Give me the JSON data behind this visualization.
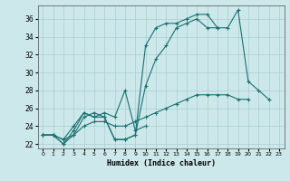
{
  "xlabel": "Humidex (Indice chaleur)",
  "xlim": [
    -0.5,
    23.5
  ],
  "ylim": [
    21.5,
    37.5
  ],
  "yticks": [
    22,
    24,
    26,
    28,
    30,
    32,
    34,
    36
  ],
  "xticks": [
    0,
    1,
    2,
    3,
    4,
    5,
    6,
    7,
    8,
    9,
    10,
    11,
    12,
    13,
    14,
    15,
    16,
    17,
    18,
    19,
    20,
    21,
    22,
    23
  ],
  "bg_color": "#cce8ea",
  "grid_color": "#aacfd4",
  "line_color": "#1a7070",
  "line1": [
    23.0,
    23.0,
    22.0,
    23.0,
    25.0,
    25.5,
    25.0,
    22.5,
    22.5,
    23.0,
    33.0,
    35.0,
    35.5,
    35.5,
    36.0,
    36.5,
    36.5,
    35.0,
    35.0,
    37.0,
    29.0,
    28.0,
    27.0,
    null
  ],
  "line2": [
    23.0,
    23.0,
    22.0,
    23.5,
    25.5,
    25.0,
    25.0,
    22.5,
    22.5,
    23.0,
    28.5,
    31.5,
    33.0,
    35.0,
    35.5,
    36.0,
    35.0,
    35.0,
    null,
    null,
    null,
    null,
    null,
    null
  ],
  "line3": [
    23.0,
    23.0,
    22.5,
    23.0,
    24.0,
    24.5,
    24.5,
    24.0,
    24.0,
    24.5,
    25.0,
    25.5,
    26.0,
    26.5,
    27.0,
    27.5,
    27.5,
    27.5,
    27.5,
    27.0,
    27.0,
    null,
    null,
    null
  ],
  "line4": [
    23.0,
    23.0,
    22.5,
    24.0,
    25.5,
    25.0,
    25.5,
    25.0,
    28.0,
    23.5,
    24.0,
    null,
    null,
    null,
    null,
    null,
    null,
    null,
    null,
    null,
    null,
    null,
    null,
    null
  ]
}
